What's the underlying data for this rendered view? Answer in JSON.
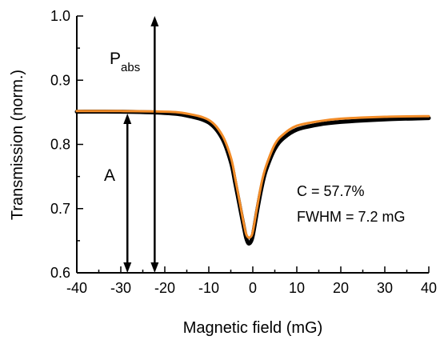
{
  "chart_data": {
    "type": "line",
    "xlabel": "Magnetic field (mG)",
    "ylabel": "Transmission (norm.)",
    "xlim": [
      -40,
      40
    ],
    "ylim": [
      0.6,
      1.0
    ],
    "x_ticks": [
      "-40",
      "-30",
      "-20",
      "-10",
      "0",
      "10",
      "20",
      "30",
      "40"
    ],
    "y_ticks": [
      "0.6",
      "0.7",
      "0.8",
      "0.9",
      "1.0"
    ],
    "grid": false,
    "colors": {
      "data": "#000000",
      "fit": "#f28c28",
      "axis": "#000000"
    },
    "series": [
      {
        "role": "measured data",
        "x": [
          -40,
          -30,
          -20,
          -15,
          -10,
          -7,
          -5,
          -4,
          -3,
          -2,
          -1.5,
          -1,
          -0.5,
          0,
          1,
          2,
          3,
          5,
          7,
          10,
          15,
          20,
          30,
          40
        ],
        "y": [
          0.851,
          0.851,
          0.849,
          0.845,
          0.834,
          0.81,
          0.773,
          0.74,
          0.705,
          0.67,
          0.654,
          0.646,
          0.648,
          0.658,
          0.697,
          0.733,
          0.76,
          0.793,
          0.81,
          0.823,
          0.831,
          0.835,
          0.839,
          0.841
        ]
      },
      {
        "role": "fit",
        "x": [
          -40,
          -30,
          -20,
          -15,
          -10,
          -7,
          -5,
          -4,
          -3,
          -2,
          -1.5,
          -1,
          -0.5,
          0,
          1,
          2,
          3,
          5,
          7,
          10,
          15,
          20,
          30,
          40
        ],
        "y": [
          0.852,
          0.852,
          0.851,
          0.848,
          0.838,
          0.815,
          0.78,
          0.747,
          0.711,
          0.675,
          0.66,
          0.655,
          0.656,
          0.664,
          0.703,
          0.74,
          0.766,
          0.8,
          0.816,
          0.829,
          0.836,
          0.84,
          0.843,
          0.844
        ]
      }
    ],
    "annotations": {
      "pabs_main": "P",
      "pabs_sub": "abs",
      "a_label": "A",
      "contrast": "C = 57.7%",
      "fwhm": "FWHM = 7.2 mG"
    },
    "arrows": [
      {
        "name": "A",
        "x": -28.5,
        "y_from": 0.848,
        "y_to": 0.6
      },
      {
        "name": "Pabs",
        "x": -22.3,
        "y_from": 1.0,
        "y_to": 0.6
      }
    ]
  }
}
